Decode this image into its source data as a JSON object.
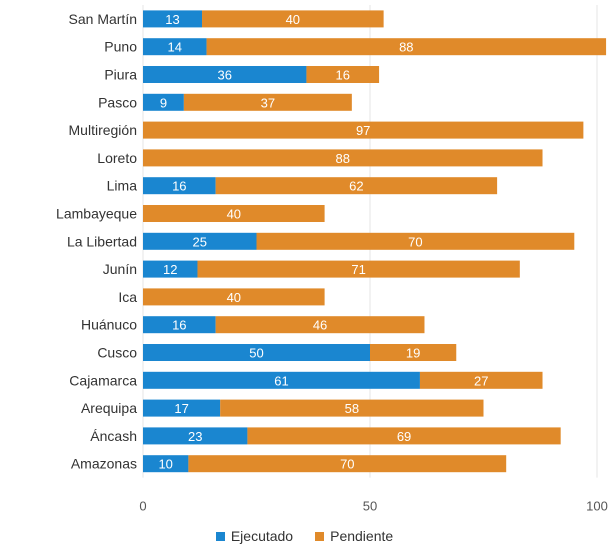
{
  "chart_data": {
    "type": "bar",
    "orientation": "horizontal",
    "stacked": true,
    "categories": [
      "San Martín",
      "Puno",
      "Piura",
      "Pasco",
      "Multiregión",
      "Loreto",
      "Lima",
      "Lambayeque",
      "La Libertad",
      "Junín",
      "Ica",
      "Huánuco",
      "Cusco",
      "Cajamarca",
      "Arequipa",
      "Áncash",
      "Amazonas"
    ],
    "series": [
      {
        "name": "Ejecutado",
        "color": "#1a86d0",
        "values": [
          13,
          14,
          36,
          9,
          0,
          0,
          16,
          0,
          25,
          12,
          0,
          16,
          50,
          61,
          17,
          23,
          10
        ]
      },
      {
        "name": "Pendiente",
        "color": "#e08a2a",
        "values": [
          40,
          88,
          16,
          37,
          97,
          88,
          62,
          40,
          70,
          71,
          40,
          46,
          19,
          27,
          58,
          69,
          70
        ]
      }
    ],
    "xticks": [
      "0",
      "50",
      "100"
    ],
    "xlim": [
      0,
      100
    ],
    "grid": true,
    "legend_position": "bottom"
  }
}
